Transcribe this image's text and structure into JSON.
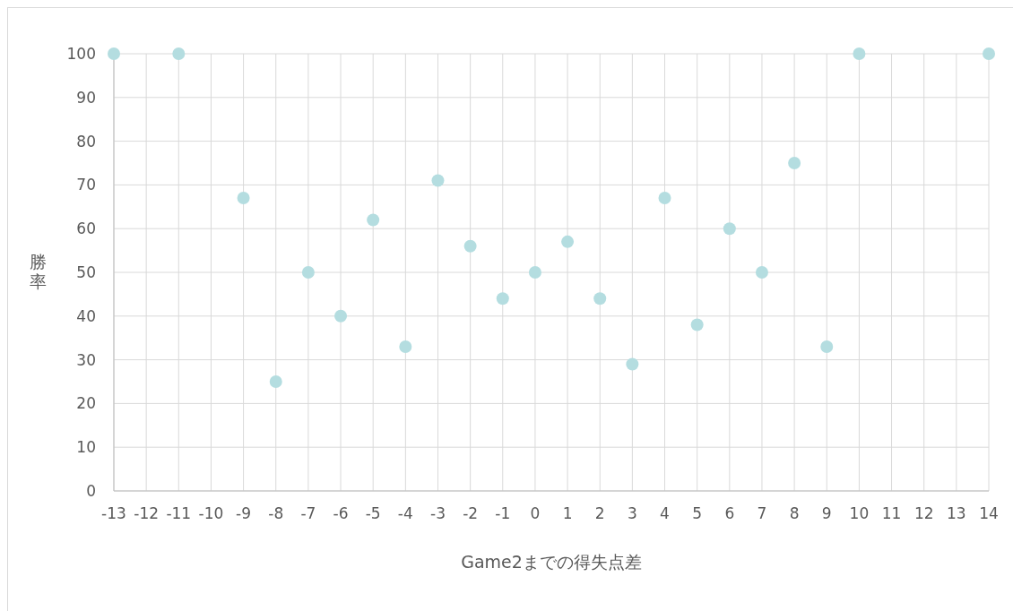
{
  "chart_data": {
    "type": "scatter",
    "xlabel": "Game2までの得失点差",
    "ylabel": "勝率",
    "x": [
      -13,
      -11,
      -9,
      -8,
      -7,
      -6,
      -5,
      -4,
      -3,
      -2,
      -1,
      0,
      1,
      2,
      3,
      4,
      5,
      6,
      7,
      8,
      9,
      10,
      14
    ],
    "values": [
      100,
      100,
      67,
      25,
      50,
      40,
      62,
      33,
      71,
      56,
      44,
      50,
      57,
      44,
      29,
      67,
      38,
      60,
      50,
      75,
      33,
      100,
      100
    ],
    "color": "#b4dde0",
    "marker": "circle",
    "grid": true,
    "xlim": [
      -13,
      14
    ],
    "xticks": [
      -13,
      -12,
      -11,
      -10,
      -9,
      -8,
      -7,
      -6,
      -5,
      -4,
      -3,
      -2,
      -1,
      0,
      1,
      2,
      3,
      4,
      5,
      6,
      7,
      8,
      9,
      10,
      11,
      12,
      13,
      14
    ],
    "ylim": [
      0,
      100
    ],
    "yticks": [
      0,
      10,
      20,
      30,
      40,
      50,
      60,
      70,
      80,
      90,
      100
    ]
  }
}
